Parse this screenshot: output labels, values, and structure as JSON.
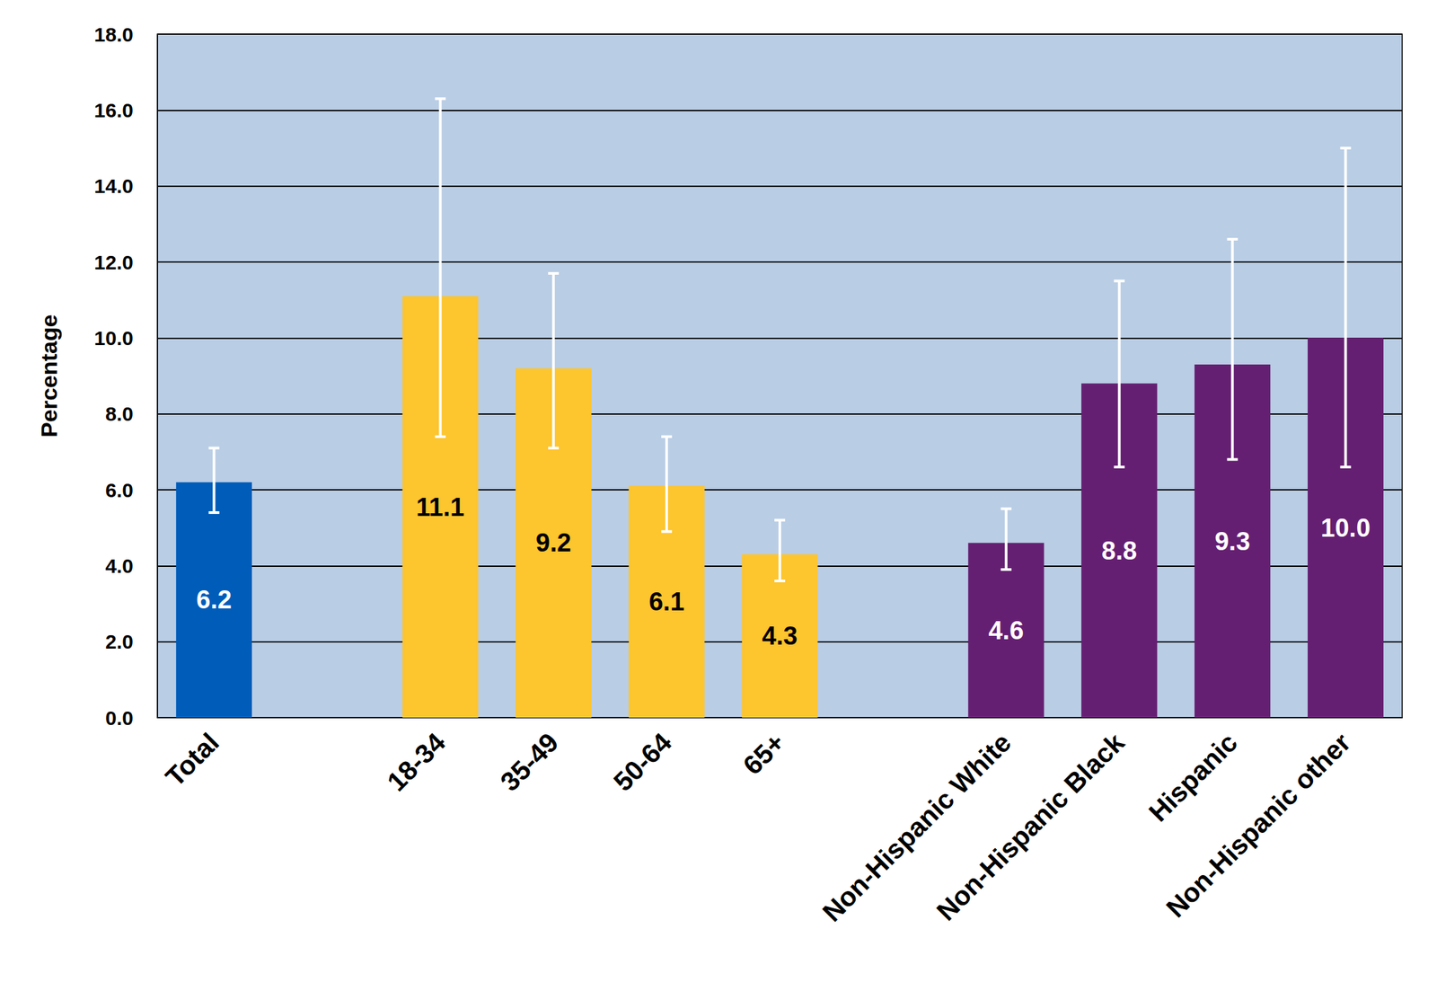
{
  "chart_data": {
    "type": "bar",
    "y_label": "Percentage",
    "categories": [
      "Total",
      null,
      "18-34",
      "35-49",
      "50-64",
      "65+",
      null,
      "Non-Hispanic White",
      "Non-Hispanic Black",
      "Hispanic",
      "Non-Hispanic other"
    ],
    "values": [
      6.2,
      null,
      11.1,
      9.2,
      6.1,
      4.3,
      null,
      4.6,
      8.8,
      9.3,
      10.0
    ],
    "value_labels": [
      "6.2",
      null,
      "11.1",
      "9.2",
      "6.1",
      "4.3",
      null,
      "4.6",
      "8.8",
      "9.3",
      "10.0"
    ],
    "error_low": [
      5.4,
      null,
      7.4,
      7.1,
      4.9,
      3.6,
      null,
      3.9,
      6.6,
      6.8,
      6.6
    ],
    "error_high": [
      7.1,
      null,
      16.3,
      11.7,
      7.4,
      5.2,
      null,
      5.5,
      11.5,
      12.6,
      15.0
    ],
    "colors": [
      "#005cb9",
      null,
      "#fdc52e",
      "#fdc52e",
      "#fdc52e",
      "#fdc52e",
      null,
      "#651f72",
      "#651f72",
      "#651f72",
      "#651f72"
    ],
    "ylim": [
      0,
      18
    ],
    "yticks": [
      {
        "value": 0,
        "label": "0.0"
      },
      {
        "value": 2,
        "label": "2.0"
      },
      {
        "value": 4,
        "label": "4.0"
      },
      {
        "value": 6,
        "label": "6.0"
      },
      {
        "value": 8,
        "label": "8.0"
      },
      {
        "value": 10,
        "label": "10.0"
      },
      {
        "value": 12,
        "label": "12.0"
      },
      {
        "value": 14,
        "label": "14.0"
      },
      {
        "value": 16,
        "label": "16.0"
      },
      {
        "value": 18,
        "label": "18.0"
      }
    ],
    "grid": true,
    "data_labels": true
  }
}
